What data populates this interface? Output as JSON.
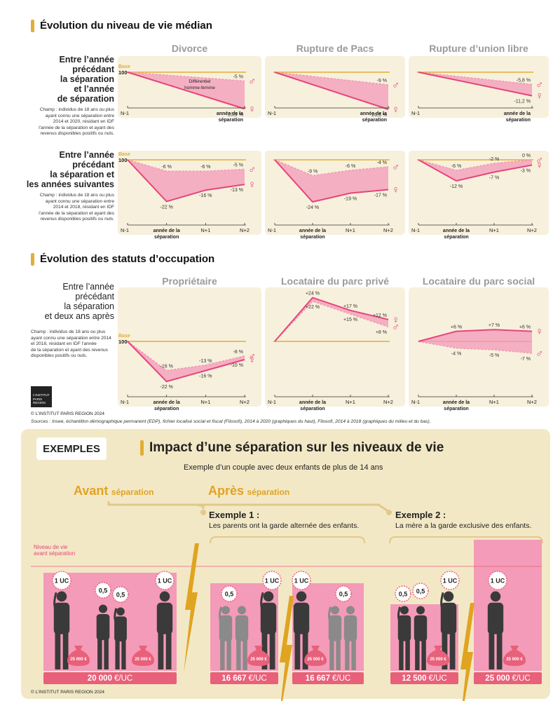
{
  "section1": {
    "title": "Évolution du niveau de vie médian"
  },
  "section2": {
    "title": "Évolution des statuts d’occupation"
  },
  "row1": {
    "label": [
      "Entre l’année",
      "précédant",
      "la séparation",
      "et l’année",
      "de séparation"
    ],
    "note": [
      "Champ : individus de 18 ans ou plus",
      "ayant connu une séparation entre",
      "2014 et 2020, résidant en IDF",
      "l’année de la séparation et ayant des",
      "revenus disponibles positifs ou nuls."
    ]
  },
  "row2": {
    "label": [
      "Entre l’année",
      "précédant",
      "la séparation et",
      "les années suivantes"
    ],
    "note": [
      "Champ : individus de 18 ans ou plus",
      "ayant connu une séparation entre",
      "2014 et 2018, résidant en IDF",
      "l’année de la séparation et ayant des",
      "revenus disponibles positifs ou nuls."
    ]
  },
  "row3": {
    "label": [
      "Entre l’année",
      "précédant",
      "la séparation",
      "et deux ans après"
    ],
    "note": [
      "Champ : individus de 18 ans ou plus",
      "ayant connu une séparation entre 2014",
      "et 2018, résidant en IDF l’année",
      "de la séparation et ayant des revenus",
      "disponibles positifs ou nuls."
    ]
  },
  "columns": {
    "divorce": "Divorce",
    "pacs": "Rupture de Pacs",
    "union": "Rupture d’union libre",
    "proprio": "Propriétaire",
    "prive": "Locataire du parc privé",
    "social": "Locataire du parc social"
  },
  "axis": {
    "base_label": "Base",
    "base_value": "100",
    "ticks_short": [
      "N-1",
      "année de la séparation"
    ],
    "ticks_long": [
      "N-1",
      "année de la séparation",
      "N+1",
      "N+2"
    ]
  },
  "annotation": {
    "diff": [
      "Différentiel",
      "homme-femme"
    ]
  },
  "chart_data": [
    {
      "type": "line",
      "title": "Divorce",
      "row": "Entre l’année précédant la séparation et l’année de séparation",
      "categories": [
        "N-1",
        "année de la séparation"
      ],
      "series": [
        {
          "symbol": "♂",
          "values": [
            0,
            -5
          ],
          "labels": [
            "",
            "-5 %"
          ]
        },
        {
          "symbol": "♀",
          "values": [
            0,
            -20.9
          ],
          "labels": [
            "",
            "-20,9 %"
          ]
        }
      ]
    },
    {
      "type": "line",
      "title": "Rupture de Pacs",
      "row": "Entre l’année précédant la séparation et l’année de séparation",
      "categories": [
        "N-1",
        "année de la séparation"
      ],
      "series": [
        {
          "symbol": "♂",
          "values": [
            0,
            -9
          ],
          "labels": [
            "",
            "-9 %"
          ]
        },
        {
          "symbol": "♀",
          "values": [
            0,
            -26.5
          ],
          "labels": [
            "",
            "-26,5 %"
          ]
        }
      ]
    },
    {
      "type": "line",
      "title": "Rupture d’union libre",
      "row": "Entre l’année précédant la séparation et l’année de séparation",
      "categories": [
        "N-1",
        "année de la séparation"
      ],
      "series": [
        {
          "symbol": "♂",
          "values": [
            0,
            -5.8
          ],
          "labels": [
            "",
            "-5,8 %"
          ]
        },
        {
          "symbol": "♀",
          "values": [
            0,
            -11.2
          ],
          "labels": [
            "",
            "-11,2 %"
          ]
        }
      ]
    },
    {
      "type": "line",
      "title": "Divorce",
      "row": "Entre l’année précédant la séparation et les années suivantes",
      "categories": [
        "N-1",
        "année de la séparation",
        "N+1",
        "N+2"
      ],
      "series": [
        {
          "symbol": "♂",
          "values": [
            0,
            -6,
            -6,
            -5
          ],
          "labels": [
            "",
            "-6 %",
            "-6 %",
            "-5 %"
          ]
        },
        {
          "symbol": "♀",
          "values": [
            0,
            -22,
            -16,
            -13
          ],
          "labels": [
            "",
            "-22 %",
            "-16 %",
            "-13 %"
          ]
        }
      ]
    },
    {
      "type": "line",
      "title": "Rupture de Pacs",
      "row": "Entre l’année précédant la séparation et les années suivantes",
      "categories": [
        "N-1",
        "année de la séparation",
        "N+1",
        "N+2"
      ],
      "series": [
        {
          "symbol": "♂",
          "values": [
            0,
            -9,
            -6,
            -4
          ],
          "labels": [
            "",
            "-9 %",
            "-6 %",
            "-4 %"
          ]
        },
        {
          "symbol": "♀",
          "values": [
            0,
            -24,
            -19,
            -17
          ],
          "labels": [
            "",
            "-24 %",
            "-19 %",
            "-17 %"
          ]
        }
      ]
    },
    {
      "type": "line",
      "title": "Rupture d’union libre",
      "row": "Entre l’année précédant la séparation et les années suivantes",
      "categories": [
        "N-1",
        "année de la séparation",
        "N+1",
        "N+2"
      ],
      "series": [
        {
          "symbol": "♂",
          "values": [
            0,
            -6,
            -2,
            0
          ],
          "labels": [
            "",
            "-6 %",
            "-2 %",
            "0 %"
          ]
        },
        {
          "symbol": "♀",
          "values": [
            0,
            -12,
            -7,
            -3
          ],
          "labels": [
            "",
            "-12 %",
            "-7 %",
            "-3 %"
          ]
        }
      ]
    },
    {
      "type": "line",
      "title": "Propriétaire",
      "row": "Entre l’année précédant la séparation et deux ans après",
      "categories": [
        "N-1",
        "année de la séparation",
        "N+1",
        "N+2"
      ],
      "series": [
        {
          "symbol": "♂",
          "values": [
            0,
            -16,
            -13,
            -8
          ],
          "labels": [
            "",
            "-16 %",
            "-13 %",
            "-8 %"
          ]
        },
        {
          "symbol": "♀",
          "values": [
            0,
            -22,
            -16,
            -10
          ],
          "labels": [
            "",
            "-22 %",
            "-16 %",
            "-10 %"
          ]
        }
      ]
    },
    {
      "type": "line",
      "title": "Locataire du parc privé",
      "row": "Entre l’année précédant la séparation et deux ans après",
      "categories": [
        "N-1",
        "année de la séparation",
        "N+1",
        "N+2"
      ],
      "series": [
        {
          "symbol": "♂",
          "values": [
            0,
            22,
            15,
            8
          ],
          "labels": [
            "",
            "+22 %",
            "+15 %",
            "+8 %"
          ]
        },
        {
          "symbol": "♀",
          "values": [
            0,
            24,
            17,
            12
          ],
          "labels": [
            "",
            "+24 %",
            "+17 %",
            "+12 %"
          ]
        }
      ]
    },
    {
      "type": "line",
      "title": "Locataire du parc social",
      "row": "Entre l’année précédant la séparation et deux ans après",
      "categories": [
        "N-1",
        "année de la séparation",
        "N+1",
        "N+2"
      ],
      "series": [
        {
          "symbol": "♂",
          "values": [
            0,
            -4,
            -5,
            -7
          ],
          "labels": [
            "",
            "-4 %",
            "-5 %",
            "-7 %"
          ]
        },
        {
          "symbol": "♀",
          "values": [
            0,
            6,
            7,
            6
          ],
          "labels": [
            "",
            "+6 %",
            "+7 %",
            "+6 %"
          ]
        }
      ]
    }
  ],
  "logo": {
    "lines": [
      "L’INSTITUT",
      "PARIS",
      "REGION"
    ]
  },
  "copyright": "© L’INSTITUT PARIS REGION 2024",
  "sources": "Sources : Insee, échantillon démographique permanent (EDP), fichier localisé social et fiscal (Filosofi), 2014 à 2020 (graphiques du haut), Filosofi, 2014 à 2018 (graphiques du milieu et du bas).",
  "examples": {
    "badge": "EXEMPLES",
    "title": "Impact d’une séparation sur les niveaux de vie",
    "subtitle": "Exemple d’un couple avec deux enfants de plus de 14 ans",
    "avant": "Avant",
    "apres": "Après",
    "separation": "séparation",
    "ex1_title": "Exemple 1 :",
    "ex1_text": "Les parents ont la garde alternée des enfants.",
    "ex2_title": "Exemple 2 :",
    "ex2_text": "La mère a la garde exclusive des enfants.",
    "level_label": [
      "Niveau de vie",
      "avant séparation"
    ],
    "uc_1": "1 UC",
    "uc_05": "0,5",
    "bag": "25 000 €",
    "values": [
      {
        "num": "20 000",
        "unit": "€/UC"
      },
      {
        "num": "16 667",
        "unit": "€/UC"
      },
      {
        "num": "16 667",
        "unit": "€/UC"
      },
      {
        "num": "12 500",
        "unit": "€/UC"
      },
      {
        "num": "25 000",
        "unit": "€/UC"
      }
    ],
    "copyright": "© L’INSTITUT PARIS REGION 2024"
  },
  "colors": {
    "female": "#e5457a",
    "male": "#f19bb6",
    "fill": "#f3a3bd",
    "base": "#e2ad38",
    "accent": "#e0a421"
  }
}
